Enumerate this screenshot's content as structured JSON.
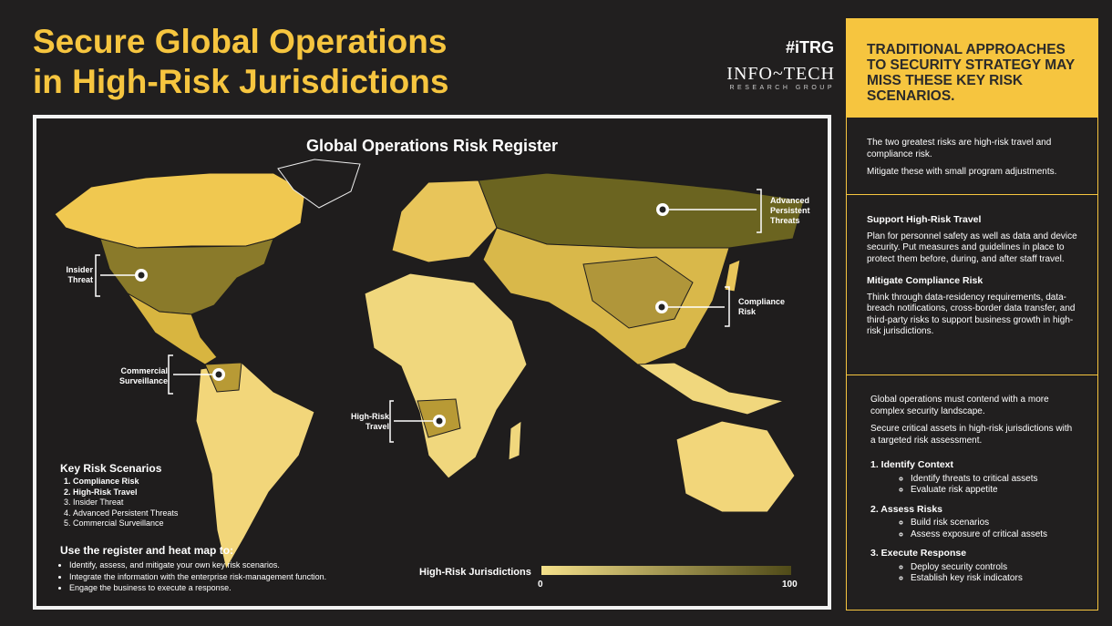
{
  "header": {
    "title": [
      "Secure Global Operations",
      "in High-Risk Jurisdictions"
    ],
    "logo": {
      "mark": "#iTRG",
      "name": "INFO~TECH",
      "subtitle": "RESEARCH GROUP"
    }
  },
  "map": {
    "title": "Global Operations Risk Register",
    "callouts": [
      "Advanced Persistent Threats",
      "Insider Threat",
      "Compliance Risk",
      "Commercial Surveillance",
      "High-Risk Travel"
    ],
    "key": {
      "title": "Key Risk Scenarios",
      "items": [
        "Compliance Risk",
        "High-Risk Travel",
        "Insider Threat",
        "Advanced Persistent Threats",
        "Commercial Surveillance"
      ]
    },
    "usage": {
      "title": "Use the register and heat map to:",
      "items": [
        "Identify, assess, and mitigate your own key risk scenarios.",
        "Integrate the information with the enterprise risk-management function.",
        "Engage the business to execute a response."
      ]
    },
    "legend": {
      "title": "High-Risk Jurisdictions",
      "min": 0,
      "max": 100
    }
  },
  "sidebar": {
    "header": "TRADITIONAL APPROACHES TO SECURITY STRATEGY MAY MISS THESE KEY RISK SCENARIOS.",
    "intro": [
      "The two greatest risks are high-risk travel and compliance risk.",
      "Mitigate these with small program adjustments."
    ],
    "sections": [
      {
        "title": "Support High-Risk Travel",
        "text": "Plan for personnel safety as well as data and device security. Put measures and guidelines in place to protect them before, during, and after staff travel."
      },
      {
        "title": "Mitigate Compliance Risk",
        "text": "Think through data-residency requirements, data-breach notifications, cross-border data transfer, and third-party risks to support business growth in high-risk jurisdictions."
      }
    ],
    "closing": [
      "Global operations must contend with a more complex security landscape.",
      "Secure critical assets in high-risk jurisdictions with a targeted risk assessment."
    ],
    "steps": [
      {
        "title": "1. Identify Context",
        "items": [
          "Identify threats to critical assets",
          "Evaluate risk appetite"
        ]
      },
      {
        "title": "2. Assess Risks",
        "items": [
          "Build risk scenarios",
          "Assess exposure of critical assets"
        ]
      },
      {
        "title": "3. Execute Response",
        "items": [
          "Deploy security controls",
          "Establish key risk indicators"
        ]
      }
    ]
  }
}
